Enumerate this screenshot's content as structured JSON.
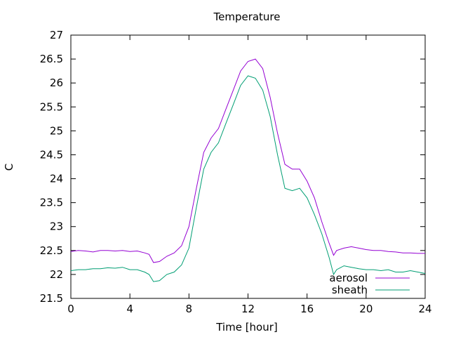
{
  "chart_data": {
    "type": "line",
    "title": "Temperature",
    "xlabel": "Time [hour]",
    "ylabel": "C",
    "xlim": [
      0,
      24
    ],
    "ylim": [
      21.5,
      27
    ],
    "x_ticks": [
      "0",
      "4",
      "8",
      "12",
      "16",
      "20",
      "24"
    ],
    "y_ticks": [
      "21.5",
      "22",
      "22.5",
      "23",
      "23.5",
      "24",
      "24.5",
      "25",
      "25.5",
      "26",
      "26.5",
      "27"
    ],
    "grid": false,
    "legend_position": "bottom-right",
    "series": [
      {
        "name": "aerosol",
        "color": "#9400d3",
        "x": [
          0,
          0.5,
          1,
          1.5,
          2,
          2.5,
          3,
          3.5,
          4,
          4.5,
          5,
          5.3,
          5.6,
          6,
          6.5,
          7,
          7.5,
          8,
          8.5,
          9,
          9.5,
          10,
          10.5,
          11,
          11.5,
          12,
          12.5,
          13,
          13.5,
          14,
          14.5,
          15,
          15.5,
          16,
          16.5,
          17,
          17.5,
          17.8,
          18,
          18.5,
          19,
          19.5,
          20,
          20.5,
          21,
          21.5,
          22,
          22.5,
          23,
          23.5,
          24
        ],
        "y": [
          22.48,
          22.5,
          22.49,
          22.47,
          22.5,
          22.5,
          22.49,
          22.5,
          22.48,
          22.49,
          22.45,
          22.42,
          22.25,
          22.27,
          22.38,
          22.45,
          22.6,
          23.0,
          23.8,
          24.55,
          24.85,
          25.05,
          25.45,
          25.85,
          26.25,
          26.45,
          26.5,
          26.3,
          25.7,
          24.95,
          24.3,
          24.2,
          24.2,
          23.95,
          23.6,
          23.1,
          22.65,
          22.4,
          22.5,
          22.55,
          22.58,
          22.55,
          22.52,
          22.5,
          22.5,
          22.48,
          22.47,
          22.45,
          22.45,
          22.44,
          22.44
        ]
      },
      {
        "name": "sheath",
        "color": "#009e73",
        "x": [
          0,
          0.5,
          1,
          1.5,
          2,
          2.5,
          3,
          3.5,
          4,
          4.5,
          5,
          5.3,
          5.6,
          6,
          6.5,
          7,
          7.5,
          8,
          8.5,
          9,
          9.5,
          10,
          10.5,
          11,
          11.5,
          12,
          12.5,
          13,
          13.5,
          14,
          14.5,
          15,
          15.5,
          16,
          16.5,
          17,
          17.5,
          17.8,
          18,
          18.5,
          19,
          19.5,
          20,
          20.5,
          21,
          21.5,
          22,
          22.5,
          23,
          23.5,
          24
        ],
        "y": [
          22.08,
          22.1,
          22.1,
          22.12,
          22.12,
          22.14,
          22.13,
          22.15,
          22.1,
          22.1,
          22.05,
          22.0,
          21.85,
          21.87,
          22.0,
          22.05,
          22.2,
          22.55,
          23.4,
          24.2,
          24.55,
          24.75,
          25.15,
          25.55,
          25.95,
          26.15,
          26.1,
          25.85,
          25.3,
          24.5,
          23.8,
          23.75,
          23.8,
          23.6,
          23.25,
          22.85,
          22.35,
          22.0,
          22.1,
          22.18,
          22.15,
          22.12,
          22.1,
          22.1,
          22.08,
          22.1,
          22.05,
          22.05,
          22.08,
          22.05,
          22.02
        ]
      }
    ]
  }
}
